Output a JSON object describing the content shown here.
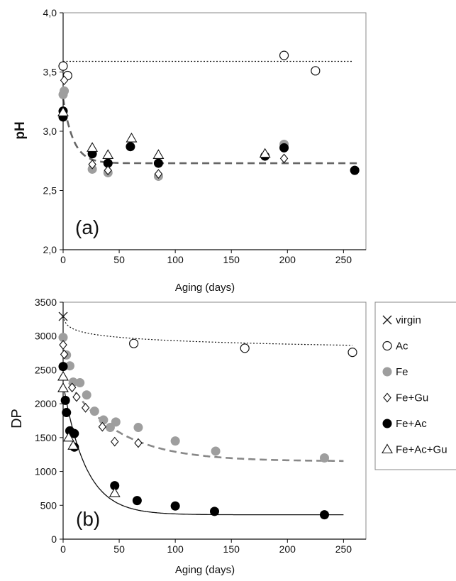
{
  "chart_data": [
    {
      "type": "scatter",
      "panel_label": "(a)",
      "xlabel": "Aging (days)",
      "ylabel": "pH",
      "xlim": [
        0,
        270
      ],
      "ylim": [
        2.0,
        4.0
      ],
      "x_ticks": [
        0,
        50,
        100,
        150,
        200,
        250
      ],
      "y_ticks": [
        2.0,
        2.5,
        3.0,
        3.5,
        4.0
      ],
      "x_tick_labels": [
        "0",
        "50",
        "100",
        "150",
        "200",
        "250"
      ],
      "y_tick_labels": [
        "2,0",
        "2,5",
        "3,0",
        "3,5",
        "4,0"
      ],
      "grid": false,
      "series": [
        {
          "name": "Ac",
          "marker": "open-circle",
          "x": [
            0,
            4,
            197,
            225
          ],
          "y": [
            3.55,
            3.47,
            3.64,
            3.51
          ]
        },
        {
          "name": "Fe",
          "marker": "gray-circle",
          "x": [
            0,
            1,
            26,
            40,
            85,
            197,
            260
          ],
          "y": [
            3.31,
            3.34,
            2.68,
            2.65,
            2.62,
            2.89,
            2.67
          ]
        },
        {
          "name": "Fe+Gu",
          "marker": "open-diamond",
          "x": [
            1,
            26,
            40,
            85,
            197
          ],
          "y": [
            3.43,
            2.72,
            2.67,
            2.64,
            2.77
          ]
        },
        {
          "name": "Fe+Ac",
          "marker": "black-circle",
          "x": [
            0,
            0,
            26,
            40,
            60,
            85,
            180,
            197,
            260
          ],
          "y": [
            3.17,
            3.12,
            2.81,
            2.73,
            2.87,
            2.73,
            2.79,
            2.86,
            2.67
          ]
        },
        {
          "name": "Fe+Ac+Gu",
          "marker": "open-triangle",
          "x": [
            0,
            26,
            40,
            61,
            85,
            180
          ],
          "y": [
            3.16,
            2.86,
            2.8,
            2.94,
            2.8,
            2.81
          ]
        }
      ],
      "reference_lines": [
        {
          "style": "dotted",
          "x": [
            0,
            258
          ],
          "y": [
            3.59,
            3.59
          ]
        },
        {
          "style": "dashed",
          "color": "#666666",
          "asymptote": 2.73,
          "start": 3.28,
          "tau": 9,
          "x_range": [
            0,
            262
          ]
        }
      ]
    },
    {
      "type": "scatter",
      "panel_label": "(b)",
      "xlabel": "Aging (days)",
      "ylabel": "DP",
      "xlim": [
        0,
        270
      ],
      "ylim": [
        0,
        3500
      ],
      "x_ticks": [
        0,
        50,
        100,
        150,
        200,
        250
      ],
      "y_ticks": [
        0,
        500,
        1000,
        1500,
        2000,
        2500,
        3000,
        3500
      ],
      "x_tick_labels": [
        "0",
        "50",
        "100",
        "150",
        "200",
        "250"
      ],
      "y_tick_labels": [
        "0",
        "500",
        "1000",
        "1500",
        "2000",
        "2500",
        "3000",
        "3500"
      ],
      "grid": false,
      "legend_position": "right",
      "series": [
        {
          "name": "virgin",
          "marker": "cross",
          "x": [
            0
          ],
          "y": [
            3290
          ]
        },
        {
          "name": "Ac",
          "marker": "open-circle",
          "x": [
            63,
            162,
            258
          ],
          "y": [
            2890,
            2820,
            2760
          ]
        },
        {
          "name": "Fe",
          "marker": "gray-circle",
          "x": [
            0,
            3,
            6,
            9,
            15,
            21,
            28,
            36,
            42,
            47,
            67,
            100,
            136,
            233
          ],
          "y": [
            2980,
            2720,
            2560,
            2320,
            2310,
            2130,
            1890,
            1760,
            1650,
            1730,
            1650,
            1450,
            1300,
            1200
          ]
        },
        {
          "name": "Fe+Gu",
          "marker": "open-diamond",
          "x": [
            0,
            1,
            8,
            12,
            20,
            35,
            46,
            67
          ],
          "y": [
            2870,
            2730,
            2240,
            2100,
            1940,
            1660,
            1440,
            1420
          ]
        },
        {
          "name": "Fe+Ac",
          "marker": "black-circle",
          "x": [
            0,
            2,
            3,
            6,
            10,
            10,
            46,
            66,
            100,
            135,
            233
          ],
          "y": [
            2550,
            2050,
            1870,
            1600,
            1560,
            1360,
            790,
            570,
            490,
            410,
            360
          ]
        },
        {
          "name": "Fe+Ac+Gu",
          "marker": "open-triangle",
          "x": [
            0,
            0,
            5,
            9,
            46
          ],
          "y": [
            2400,
            2230,
            1500,
            1380,
            680
          ]
        }
      ],
      "reference_lines": [
        {
          "style": "dotted",
          "a": 3290,
          "b": -0.025,
          "x_range": [
            0,
            258
          ]
        },
        {
          "style": "dashed",
          "color": "#888888",
          "asymptote": 1150,
          "start": 2450,
          "tau": 45,
          "x_range": [
            0,
            250
          ]
        },
        {
          "style": "solid",
          "asymptote": 360,
          "start": 2300,
          "tau": 20,
          "x_range": [
            0,
            250
          ]
        }
      ]
    }
  ],
  "legend": {
    "items": [
      {
        "marker": "cross",
        "label": "virgin"
      },
      {
        "marker": "open-circle",
        "label": "Ac"
      },
      {
        "marker": "gray-circle",
        "label": "Fe"
      },
      {
        "marker": "open-diamond",
        "label": "Fe+Gu"
      },
      {
        "marker": "black-circle",
        "label": "Fe+Ac"
      },
      {
        "marker": "open-triangle",
        "label": "Fe+Ac+Gu"
      }
    ]
  },
  "colors": {
    "gray_marker": "#9e9e9e",
    "black_marker": "#000000",
    "axis": "#111111",
    "frame": "#8a8a8a"
  }
}
